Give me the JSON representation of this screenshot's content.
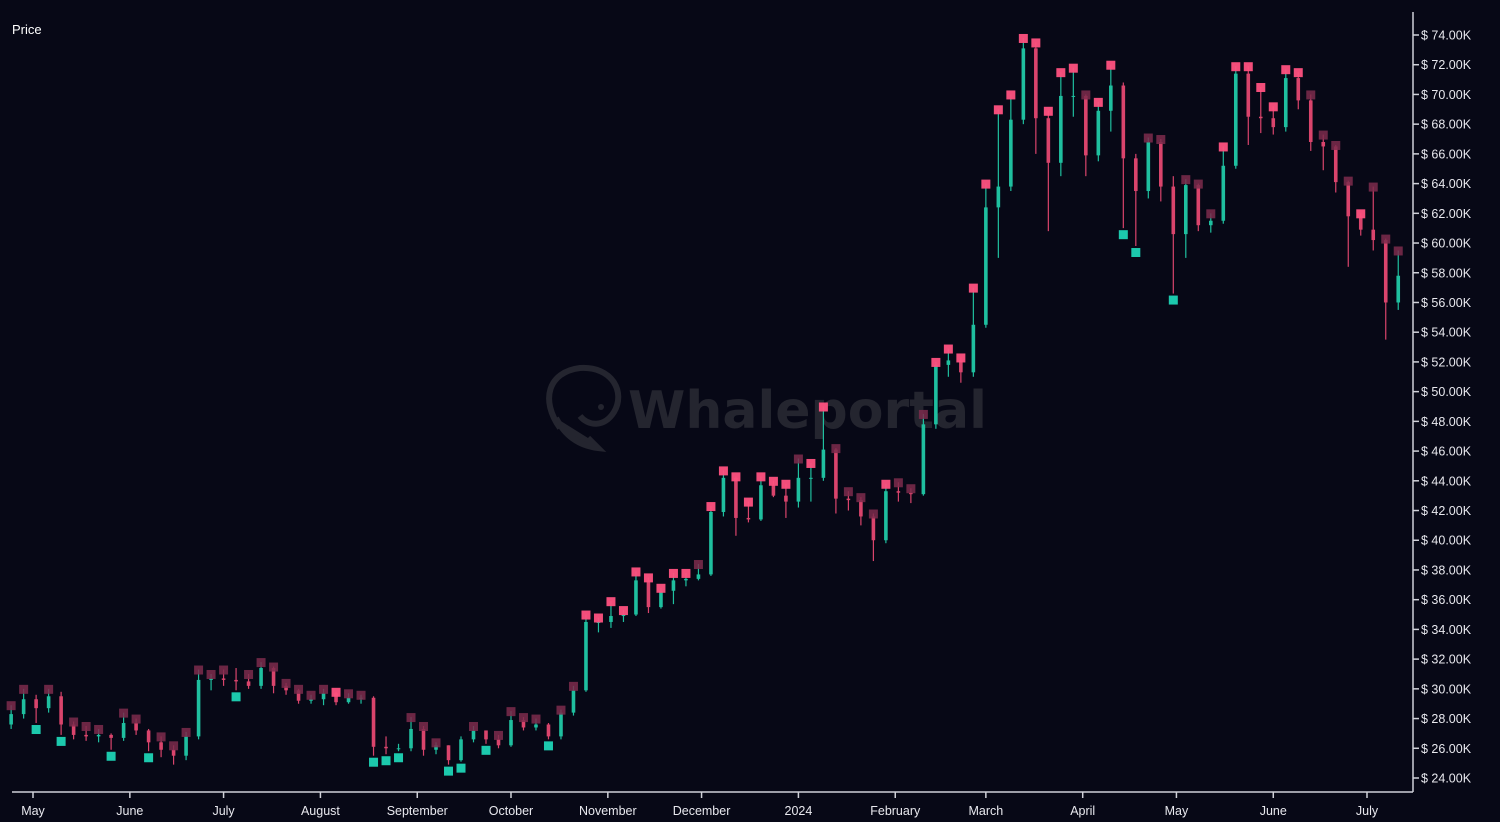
{
  "chart_data": {
    "type": "candlestick",
    "ylabel": "Price",
    "ylim": [
      24,
      74
    ],
    "y_unit": "K USD",
    "y_ticks": [
      74,
      72,
      70,
      68,
      66,
      64,
      62,
      60,
      58,
      56,
      54,
      52,
      50,
      48,
      46,
      44,
      42,
      40,
      38,
      36,
      34,
      32,
      30,
      28,
      26,
      24
    ],
    "y_tick_labels": [
      "$ 74.00K",
      "$ 72.00K",
      "$ 70.00K",
      "$ 68.00K",
      "$ 66.00K",
      "$ 64.00K",
      "$ 62.00K",
      "$ 60.00K",
      "$ 58.00K",
      "$ 56.00K",
      "$ 54.00K",
      "$ 52.00K",
      "$ 50.00K",
      "$ 48.00K",
      "$ 46.00K",
      "$ 44.00K",
      "$ 42.00K",
      "$ 40.00K",
      "$ 38.00K",
      "$ 36.00K",
      "$ 34.00K",
      "$ 32.00K",
      "$ 30.00K",
      "$ 28.00K",
      "$ 26.00K",
      "$ 24.00K"
    ],
    "x_ticks": [
      {
        "date": "2023-05-01",
        "label": "May"
      },
      {
        "date": "2023-06-01",
        "label": "June"
      },
      {
        "date": "2023-07-01",
        "label": "July"
      },
      {
        "date": "2023-08-01",
        "label": "August"
      },
      {
        "date": "2023-09-01",
        "label": "September"
      },
      {
        "date": "2023-10-01",
        "label": "October"
      },
      {
        "date": "2023-11-01",
        "label": "November"
      },
      {
        "date": "2023-12-01",
        "label": "December"
      },
      {
        "date": "2024-01-01",
        "label": "2024"
      },
      {
        "date": "2024-02-01",
        "label": "February"
      },
      {
        "date": "2024-03-01",
        "label": "March"
      },
      {
        "date": "2024-04-01",
        "label": "April"
      },
      {
        "date": "2024-05-01",
        "label": "May"
      },
      {
        "date": "2024-06-01",
        "label": "June"
      },
      {
        "date": "2024-07-01",
        "label": "July"
      }
    ],
    "colors": {
      "background": "#070816",
      "up": "#1fbf9f",
      "down": "#d9446c",
      "signal_strong": "#ff5180",
      "signal_weak": "#7d2b4c",
      "signal_buy": "#1cc9ad",
      "axis": "#cfd0d8",
      "watermark": "#24252f"
    },
    "candle_fields": [
      "date",
      "open",
      "high",
      "low",
      "close",
      "signal"
    ],
    "signal_legend": {
      "2": "strong sell marker",
      "1": "weak sell marker",
      "0": "none",
      "-1": "buy marker"
    },
    "candles": [
      [
        "2023-04-24",
        27.6,
        28.9,
        27.3,
        28.3,
        1
      ],
      [
        "2023-04-28",
        28.3,
        30.0,
        28.0,
        29.3,
        1
      ],
      [
        "2023-05-02",
        29.3,
        29.6,
        27.7,
        28.7,
        -1
      ],
      [
        "2023-05-06",
        28.7,
        30.0,
        28.4,
        29.5,
        1
      ],
      [
        "2023-05-10",
        29.5,
        29.8,
        26.9,
        27.6,
        -1
      ],
      [
        "2023-05-14",
        27.6,
        27.8,
        26.6,
        26.9,
        1
      ],
      [
        "2023-05-18",
        26.9,
        27.5,
        26.5,
        26.8,
        1
      ],
      [
        "2023-05-22",
        26.8,
        27.3,
        26.4,
        26.9,
        1
      ],
      [
        "2023-05-26",
        26.9,
        27.0,
        25.9,
        26.7,
        -1
      ],
      [
        "2023-05-30",
        26.7,
        28.4,
        26.5,
        27.7,
        1
      ],
      [
        "2023-06-03",
        27.7,
        28.0,
        26.9,
        27.2,
        1
      ],
      [
        "2023-06-07",
        27.2,
        27.3,
        25.8,
        26.4,
        -1
      ],
      [
        "2023-06-11",
        26.4,
        26.8,
        25.4,
        25.9,
        1
      ],
      [
        "2023-06-15",
        25.9,
        26.2,
        24.9,
        25.5,
        1
      ],
      [
        "2023-06-19",
        25.5,
        27.1,
        25.2,
        26.8,
        1
      ],
      [
        "2023-06-23",
        26.8,
        31.3,
        26.6,
        30.6,
        1
      ],
      [
        "2023-06-27",
        30.6,
        31.0,
        29.9,
        30.7,
        1
      ],
      [
        "2023-07-01",
        30.7,
        31.3,
        30.2,
        30.6,
        1
      ],
      [
        "2023-07-05",
        30.6,
        31.4,
        29.9,
        30.5,
        -1
      ],
      [
        "2023-07-09",
        30.5,
        31.0,
        30.0,
        30.2,
        1
      ],
      [
        "2023-07-13",
        30.2,
        31.8,
        30.0,
        31.4,
        1
      ],
      [
        "2023-07-17",
        31.4,
        31.5,
        29.7,
        30.2,
        1
      ],
      [
        "2023-07-21",
        30.2,
        30.4,
        29.6,
        29.9,
        1
      ],
      [
        "2023-07-25",
        29.9,
        30.0,
        29.0,
        29.2,
        1
      ],
      [
        "2023-07-29",
        29.2,
        29.6,
        29.0,
        29.3,
        1
      ],
      [
        "2023-08-02",
        29.3,
        30.0,
        28.9,
        29.7,
        1
      ],
      [
        "2023-08-06",
        29.7,
        29.8,
        28.9,
        29.1,
        2
      ],
      [
        "2023-08-10",
        29.1,
        29.7,
        29.0,
        29.4,
        1
      ],
      [
        "2023-08-14",
        29.4,
        29.6,
        29.0,
        29.4,
        1
      ],
      [
        "2023-08-18",
        29.4,
        29.5,
        25.5,
        26.1,
        -1
      ],
      [
        "2023-08-22",
        26.1,
        26.8,
        25.6,
        26.0,
        -1
      ],
      [
        "2023-08-26",
        26.0,
        26.3,
        25.8,
        26.0,
        -1
      ],
      [
        "2023-08-30",
        26.0,
        28.1,
        25.8,
        27.3,
        1
      ],
      [
        "2023-09-03",
        27.3,
        27.5,
        25.5,
        25.9,
        1
      ],
      [
        "2023-09-07",
        25.9,
        26.4,
        25.6,
        26.2,
        1
      ],
      [
        "2023-09-11",
        26.2,
        26.2,
        24.9,
        25.2,
        -1
      ],
      [
        "2023-09-15",
        25.2,
        26.8,
        25.1,
        26.6,
        -1
      ],
      [
        "2023-09-19",
        26.6,
        27.5,
        26.4,
        27.2,
        1
      ],
      [
        "2023-09-23",
        27.2,
        27.2,
        26.3,
        26.6,
        -1
      ],
      [
        "2023-09-27",
        26.6,
        26.9,
        26.0,
        26.2,
        1
      ],
      [
        "2023-10-01",
        26.2,
        28.5,
        26.1,
        27.9,
        1
      ],
      [
        "2023-10-05",
        27.9,
        28.1,
        27.2,
        27.4,
        1
      ],
      [
        "2023-10-09",
        27.4,
        28.0,
        27.2,
        27.6,
        1
      ],
      [
        "2023-10-13",
        27.6,
        27.7,
        26.6,
        26.8,
        -1
      ],
      [
        "2023-10-17",
        26.8,
        28.6,
        26.6,
        28.4,
        1
      ],
      [
        "2023-10-21",
        28.4,
        30.2,
        28.2,
        29.9,
        1
      ],
      [
        "2023-10-25",
        29.9,
        35.0,
        29.8,
        34.5,
        2
      ],
      [
        "2023-10-29",
        34.5,
        34.8,
        33.8,
        34.5,
        2
      ],
      [
        "2023-11-02",
        34.5,
        35.9,
        34.1,
        34.9,
        2
      ],
      [
        "2023-11-06",
        34.9,
        35.3,
        34.5,
        35.0,
        2
      ],
      [
        "2023-11-10",
        35.0,
        37.9,
        34.9,
        37.3,
        2
      ],
      [
        "2023-11-14",
        37.3,
        37.5,
        35.1,
        35.5,
        2
      ],
      [
        "2023-11-18",
        35.5,
        36.8,
        35.4,
        36.6,
        2
      ],
      [
        "2023-11-22",
        36.6,
        37.8,
        35.7,
        37.3,
        2
      ],
      [
        "2023-11-26",
        37.3,
        37.8,
        36.9,
        37.4,
        2
      ],
      [
        "2023-11-30",
        37.4,
        38.4,
        37.3,
        37.7,
        1
      ],
      [
        "2023-12-04",
        37.7,
        42.3,
        37.6,
        41.9,
        2
      ],
      [
        "2023-12-08",
        41.9,
        44.7,
        41.6,
        44.2,
        2
      ],
      [
        "2023-12-12",
        44.2,
        44.3,
        40.3,
        41.5,
        2
      ],
      [
        "2023-12-16",
        41.5,
        42.6,
        41.2,
        41.4,
        2
      ],
      [
        "2023-12-20",
        41.4,
        44.3,
        41.3,
        43.7,
        2
      ],
      [
        "2023-12-24",
        43.7,
        44.0,
        42.9,
        43.0,
        2
      ],
      [
        "2023-12-28",
        43.0,
        43.8,
        41.5,
        42.6,
        2
      ],
      [
        "2024-01-01",
        42.6,
        45.5,
        42.2,
        44.2,
        1
      ],
      [
        "2024-01-05",
        44.2,
        45.2,
        42.6,
        44.2,
        2
      ],
      [
        "2024-01-09",
        44.2,
        49.0,
        44.0,
        46.1,
        2
      ],
      [
        "2024-01-13",
        46.1,
        46.2,
        41.8,
        42.8,
        1
      ],
      [
        "2024-01-17",
        42.8,
        43.3,
        42.0,
        42.7,
        1
      ],
      [
        "2024-01-21",
        42.7,
        42.9,
        41.0,
        41.6,
        1
      ],
      [
        "2024-01-25",
        41.6,
        41.8,
        38.6,
        40.0,
        1
      ],
      [
        "2024-01-29",
        40.0,
        43.8,
        39.8,
        43.3,
        2
      ],
      [
        "2024-02-02",
        43.3,
        43.9,
        42.6,
        43.2,
        1
      ],
      [
        "2024-02-06",
        43.2,
        43.5,
        42.5,
        43.1,
        1
      ],
      [
        "2024-02-10",
        43.1,
        48.5,
        43.0,
        47.8,
        1
      ],
      [
        "2024-02-14",
        47.8,
        52.0,
        47.5,
        51.8,
        2
      ],
      [
        "2024-02-18",
        51.8,
        52.9,
        51.0,
        52.1,
        2
      ],
      [
        "2024-02-22",
        52.1,
        52.3,
        50.6,
        51.3,
        2
      ],
      [
        "2024-02-26",
        51.3,
        57.0,
        51.0,
        54.5,
        2
      ],
      [
        "2024-03-01",
        54.5,
        64.0,
        54.3,
        62.4,
        2
      ],
      [
        "2024-03-05",
        62.4,
        69.0,
        59.0,
        63.8,
        2
      ],
      [
        "2024-03-09",
        63.8,
        70.0,
        63.5,
        68.3,
        2
      ],
      [
        "2024-03-13",
        68.3,
        73.8,
        68.0,
        73.1,
        2
      ],
      [
        "2024-03-17",
        73.1,
        73.5,
        66.0,
        68.4,
        2
      ],
      [
        "2024-03-21",
        68.4,
        68.9,
        60.8,
        65.4,
        2
      ],
      [
        "2024-03-25",
        65.4,
        71.5,
        64.5,
        69.9,
        2
      ],
      [
        "2024-03-29",
        69.9,
        71.8,
        68.5,
        69.9,
        2
      ],
      [
        "2024-04-02",
        69.9,
        70.0,
        64.5,
        65.9,
        1
      ],
      [
        "2024-04-06",
        65.9,
        69.5,
        65.5,
        68.9,
        2
      ],
      [
        "2024-04-10",
        68.9,
        72.0,
        67.5,
        70.6,
        2
      ],
      [
        "2024-04-14",
        70.6,
        70.8,
        61.0,
        65.7,
        -1
      ],
      [
        "2024-04-18",
        65.7,
        66.0,
        59.8,
        63.5,
        -1
      ],
      [
        "2024-04-22",
        63.5,
        67.1,
        63.0,
        66.8,
        1
      ],
      [
        "2024-04-26",
        66.8,
        67.0,
        62.8,
        63.8,
        1
      ],
      [
        "2024-04-30",
        63.8,
        64.5,
        56.6,
        60.6,
        -1
      ],
      [
        "2024-05-04",
        60.6,
        64.3,
        59.0,
        63.9,
        1
      ],
      [
        "2024-05-08",
        63.9,
        64.0,
        60.8,
        61.2,
        1
      ],
      [
        "2024-05-12",
        61.2,
        62.0,
        60.7,
        61.5,
        1
      ],
      [
        "2024-05-16",
        61.5,
        66.5,
        61.3,
        65.2,
        2
      ],
      [
        "2024-05-20",
        65.2,
        71.9,
        65.0,
        71.4,
        2
      ],
      [
        "2024-05-24",
        71.4,
        71.9,
        66.6,
        68.5,
        2
      ],
      [
        "2024-05-28",
        68.5,
        70.5,
        67.4,
        68.4,
        2
      ],
      [
        "2024-06-01",
        68.4,
        69.2,
        67.3,
        67.8,
        2
      ],
      [
        "2024-06-05",
        67.8,
        71.7,
        67.5,
        71.1,
        2
      ],
      [
        "2024-06-09",
        71.1,
        71.5,
        69.0,
        69.6,
        2
      ],
      [
        "2024-06-13",
        69.6,
        70.0,
        66.2,
        66.8,
        1
      ],
      [
        "2024-06-17",
        66.8,
        67.3,
        64.9,
        66.5,
        1
      ],
      [
        "2024-06-21",
        66.5,
        66.6,
        63.4,
        64.1,
        1
      ],
      [
        "2024-06-25",
        64.1,
        64.2,
        58.4,
        61.8,
        1
      ],
      [
        "2024-06-29",
        61.8,
        62.0,
        60.5,
        60.9,
        2
      ],
      [
        "2024-07-03",
        60.9,
        63.8,
        59.5,
        60.2,
        1
      ],
      [
        "2024-07-07",
        60.2,
        60.3,
        53.5,
        56.0,
        1
      ],
      [
        "2024-07-11",
        56.0,
        59.5,
        55.5,
        57.8,
        1
      ]
    ]
  },
  "watermark": {
    "text": "Whaleportal"
  }
}
